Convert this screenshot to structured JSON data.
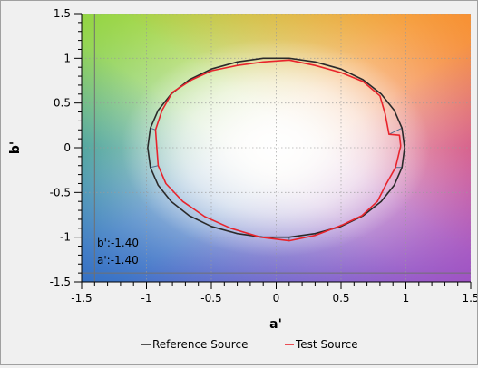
{
  "chart_data": {
    "type": "line",
    "title": "",
    "xlabel": "a'",
    "ylabel": "b'",
    "xlim": [
      -1.5,
      1.5
    ],
    "ylim": [
      -1.5,
      1.5
    ],
    "x_ticks": [
      "-1.5",
      "-1",
      "-0.5",
      "0",
      "0.5",
      "1",
      "1.5"
    ],
    "y_ticks": [
      "1.5",
      "1",
      "0.5",
      "0",
      "-0.5",
      "-1",
      "-1.5"
    ],
    "grid": true,
    "legend_position": "bottom",
    "background": "a*b* color gamut gradient",
    "series": [
      {
        "name": "Reference Source",
        "color": "#2a2a2a",
        "points": [
          [
            0.99,
            0.0
          ],
          [
            0.97,
            0.22
          ],
          [
            0.91,
            0.42
          ],
          [
            0.81,
            0.6
          ],
          [
            0.67,
            0.76
          ],
          [
            0.5,
            0.88
          ],
          [
            0.3,
            0.96
          ],
          [
            0.1,
            1.0
          ],
          [
            -0.1,
            1.0
          ],
          [
            -0.3,
            0.96
          ],
          [
            -0.5,
            0.88
          ],
          [
            -0.67,
            0.76
          ],
          [
            -0.81,
            0.6
          ],
          [
            -0.91,
            0.42
          ],
          [
            -0.97,
            0.22
          ],
          [
            -0.99,
            0.0
          ],
          [
            -0.97,
            -0.22
          ],
          [
            -0.91,
            -0.42
          ],
          [
            -0.81,
            -0.6
          ],
          [
            -0.67,
            -0.76
          ],
          [
            -0.5,
            -0.88
          ],
          [
            -0.3,
            -0.96
          ],
          [
            -0.1,
            -1.0
          ],
          [
            0.1,
            -1.0
          ],
          [
            0.3,
            -0.96
          ],
          [
            0.5,
            -0.88
          ],
          [
            0.67,
            -0.76
          ],
          [
            0.81,
            -0.6
          ],
          [
            0.91,
            -0.42
          ],
          [
            0.97,
            -0.22
          ],
          [
            0.99,
            0.0
          ]
        ]
      },
      {
        "name": "Test Source",
        "color": "#e8242c",
        "points": [
          [
            0.96,
            0.02
          ],
          [
            0.95,
            0.14
          ],
          [
            0.87,
            0.15
          ],
          [
            0.84,
            0.38
          ],
          [
            0.8,
            0.58
          ],
          [
            0.67,
            0.74
          ],
          [
            0.5,
            0.84
          ],
          [
            0.3,
            0.92
          ],
          [
            0.1,
            0.98
          ],
          [
            -0.1,
            0.96
          ],
          [
            -0.3,
            0.92
          ],
          [
            -0.5,
            0.86
          ],
          [
            -0.65,
            0.76
          ],
          [
            -0.8,
            0.62
          ],
          [
            -0.88,
            0.42
          ],
          [
            -0.93,
            0.2
          ],
          [
            -0.92,
            0.0
          ],
          [
            -0.91,
            -0.2
          ],
          [
            -0.85,
            -0.4
          ],
          [
            -0.72,
            -0.6
          ],
          [
            -0.55,
            -0.77
          ],
          [
            -0.35,
            -0.9
          ],
          [
            -0.12,
            -1.0
          ],
          [
            0.1,
            -1.04
          ],
          [
            0.3,
            -0.98
          ],
          [
            0.5,
            -0.87
          ],
          [
            0.66,
            -0.76
          ],
          [
            0.78,
            -0.6
          ],
          [
            0.85,
            -0.4
          ],
          [
            0.92,
            -0.22
          ],
          [
            0.96,
            0.02
          ]
        ]
      }
    ],
    "connectors": [
      [
        [
          0.87,
          0.15
        ],
        [
          0.97,
          0.22
        ]
      ],
      [
        [
          -0.93,
          0.2
        ],
        [
          -0.97,
          0.22
        ]
      ],
      [
        [
          -0.91,
          -0.2
        ],
        [
          -0.97,
          -0.22
        ]
      ],
      [
        [
          0.92,
          -0.22
        ],
        [
          0.97,
          -0.22
        ]
      ],
      [
        [
          0.1,
          -1.04
        ],
        [
          0.1,
          -1.0
        ]
      ],
      [
        [
          -0.12,
          -1.0
        ],
        [
          -0.1,
          -1.0
        ]
      ],
      [
        [
          0.3,
          -0.98
        ],
        [
          0.3,
          -0.96
        ]
      ],
      [
        [
          -0.5,
          0.86
        ],
        [
          -0.5,
          0.88
        ]
      ],
      [
        [
          0.5,
          -0.87
        ],
        [
          0.5,
          -0.88
        ]
      ],
      [
        [
          -0.3,
          0.92
        ],
        [
          -0.3,
          0.96
        ]
      ]
    ],
    "cursor": {
      "a": -1.4,
      "b": -1.4,
      "b_label": "b':-1.40",
      "a_label": "a':-1.40"
    }
  }
}
